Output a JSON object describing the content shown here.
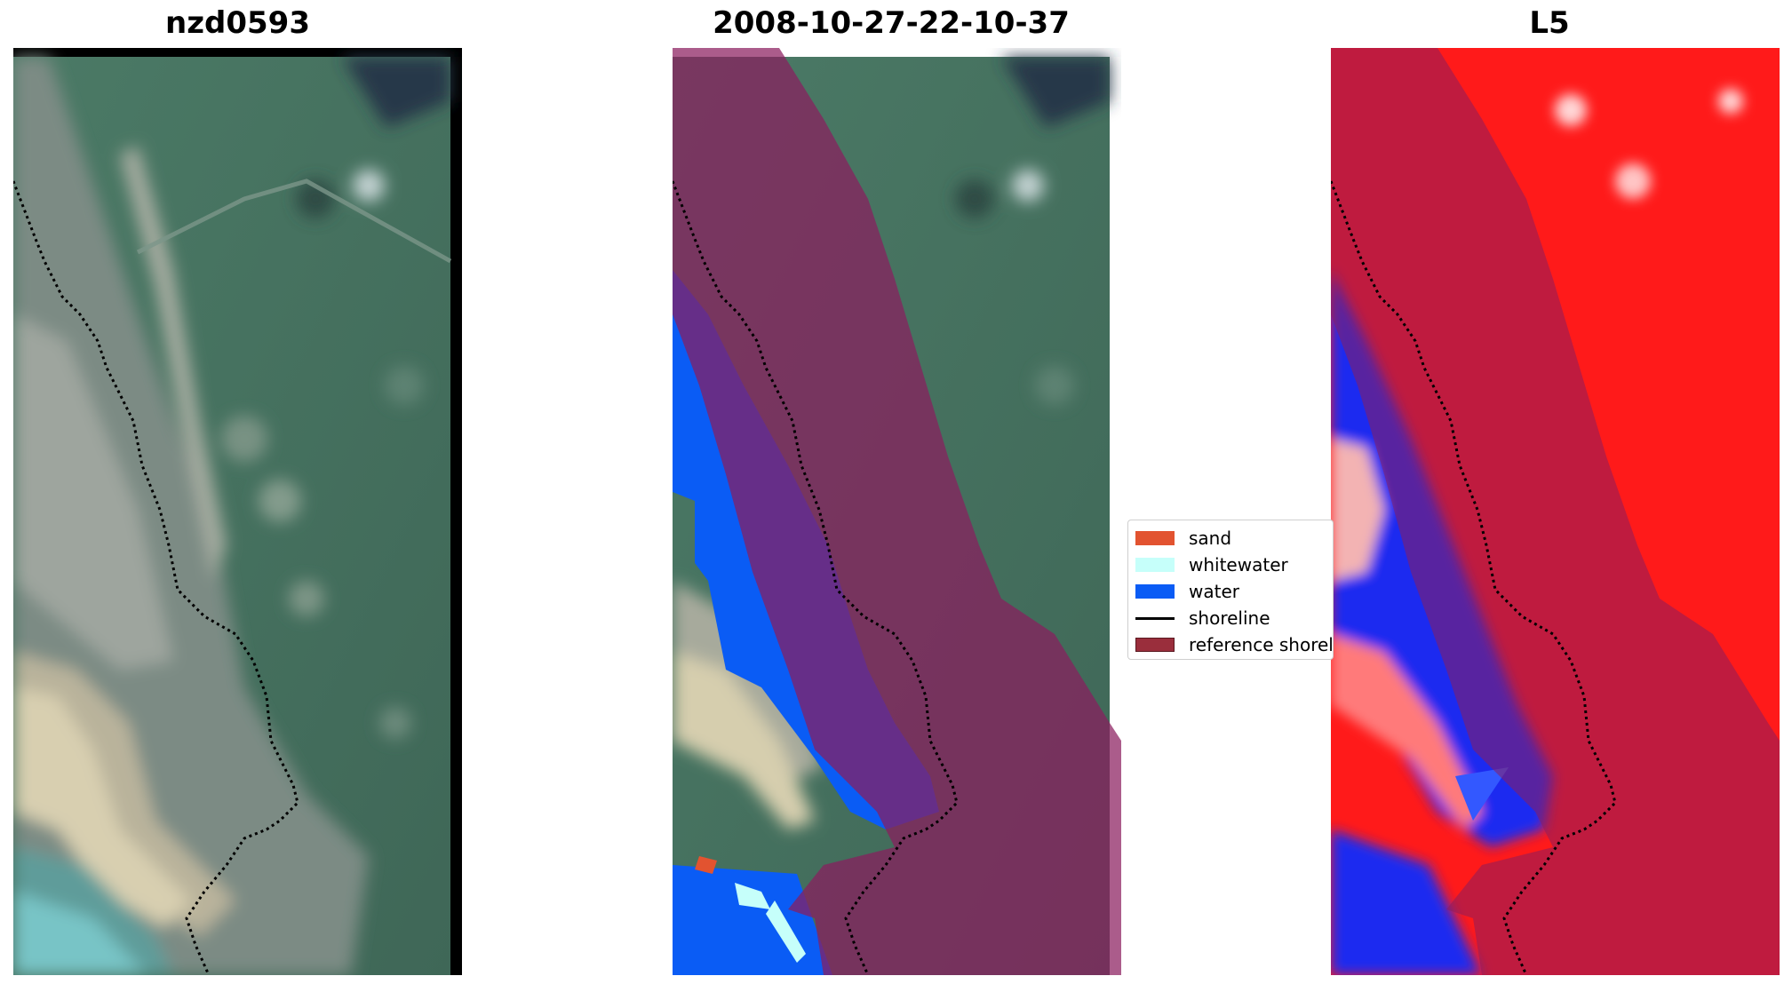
{
  "panels": [
    {
      "title": "nzd0593"
    },
    {
      "title": "2008-10-27-22-10-37"
    },
    {
      "title": "L5"
    }
  ],
  "legend": {
    "items": [
      {
        "label": "sand",
        "color": "#E25330"
      },
      {
        "label": "whitewater",
        "color": "#C6FFFA"
      },
      {
        "label": "water",
        "color": "#0A5CF5"
      },
      {
        "label": "shoreline",
        "color": "#000000"
      },
      {
        "label": "reference shoreline buffer",
        "color": "#9A2E3C"
      }
    ]
  },
  "colors": {
    "land_grass": "#456e5e",
    "land_sand": "#b8b096",
    "water_class": "#0A5CF5",
    "buffer_overlay": "#8a1d5e",
    "classified_red": "#ff1a1a",
    "classified_blue": "#1d2cf0",
    "shoreline": "#000000"
  }
}
